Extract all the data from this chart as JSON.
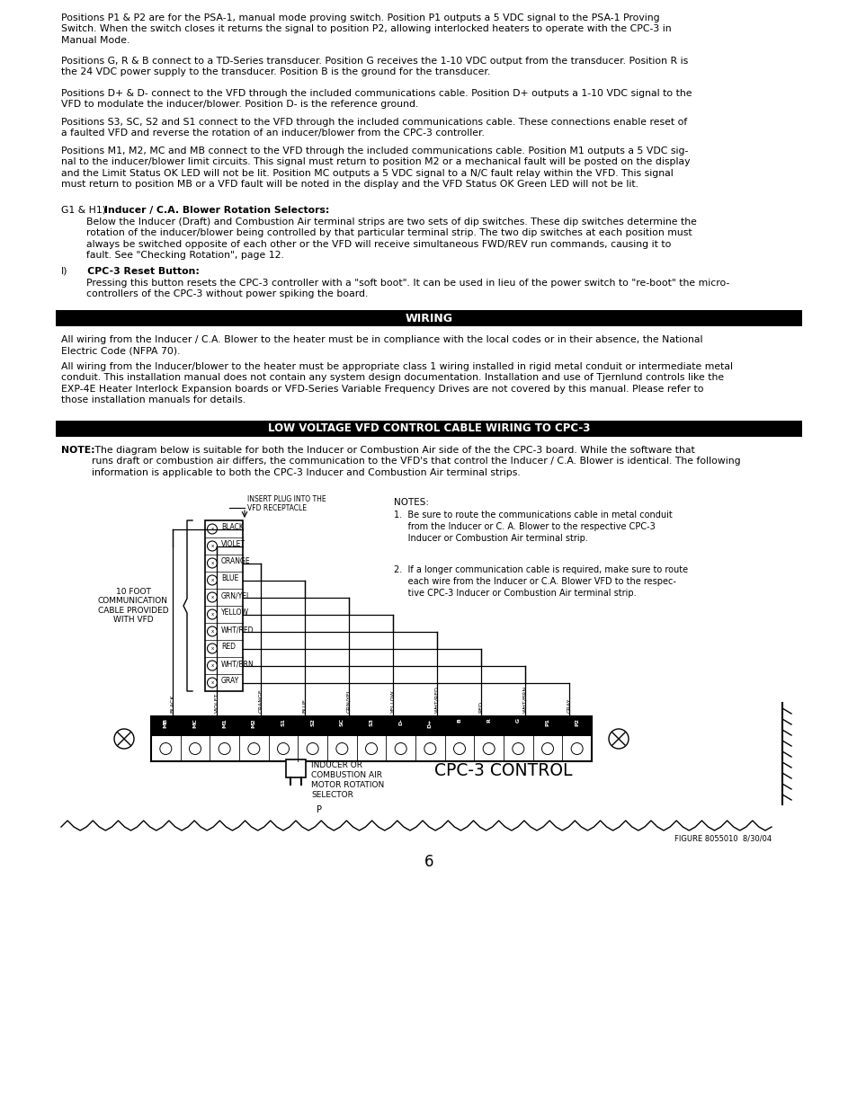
{
  "page_number": "6",
  "background_color": "#ffffff",
  "para1": "Positions P1 & P2 are for the PSA-1, manual mode proving switch. Position P1 outputs a 5 VDC signal to the PSA-1 Proving\nSwitch. When the switch closes it returns the signal to position P2, allowing interlocked heaters to operate with the CPC-3 in\nManual Mode.",
  "para2": "Positions G, R & B connect to a TD-Series transducer. Position G receives the 1-10 VDC output from the transducer. Position R is\nthe 24 VDC power supply to the transducer. Position B is the ground for the transducer.",
  "para3": "Positions D+ & D- connect to the VFD through the included communications cable. Position D+ outputs a 1-10 VDC signal to the\nVFD to modulate the inducer/blower. Position D- is the reference ground.",
  "para4": "Positions S3, SC, S2 and S1 connect to the VFD through the included communications cable. These connections enable reset of\na faulted VFD and reverse the rotation of an inducer/blower from the CPC-3 controller.",
  "para5": "Positions M1, M2, MC and MB connect to the VFD through the included communications cable. Position M1 outputs a 5 VDC sig-\nnal to the inducer/blower limit circuits. This signal must return to position M2 or a mechanical fault will be posted on the display\nand the Limit Status OK LED will not be lit. Position MC outputs a 5 VDC signal to a N/C fault relay within the VFD. This signal\nmust return to position MB or a VFD fault will be noted in the display and the VFD Status OK Green LED will not be lit.",
  "g1h1_plain": "G1 & H1) ",
  "g1h1_bold": "Inducer / C.A. Blower Rotation Selectors:",
  "g1h1_text": "Below the Inducer (Draft) and Combustion Air terminal strips are two sets of dip switches. These dip switches determine the\nrotation of the inducer/blower being controlled by that particular terminal strip. The two dip switches at each position must\nalways be switched opposite of each other or the VFD will receive simultaneous FWD/REV run commands, causing it to\nfault. See \"Checking Rotation\", page 12.",
  "i_plain": "I)",
  "i_bold": "CPC-3 Reset Button:",
  "i_text": "Pressing this button resets the CPC-3 controller with a \"soft boot\". It can be used in lieu of the power switch to \"re-boot\" the micro-\ncontrollers of the CPC-3 without power spiking the board.",
  "wiring_header": "WIRING",
  "wiring_para1": "All wiring from the Inducer / C.A. Blower to the heater must be in compliance with the local codes or in their absence, the National\nElectric Code (NFPA 70).",
  "wiring_para2": "All wiring from the Inducer/blower to the heater must be appropriate class 1 wiring installed in rigid metal conduit or intermediate metal\nconduit. This installation manual does not contain any system design documentation. Installation and use of Tjernlund controls like the\nEXP-4E Heater Interlock Expansion boards or VFD-Series Variable Frequency Drives are not covered by this manual. Please refer to\nthose installation manuals for details.",
  "lv_header": "LOW VOLTAGE VFD CONTROL CABLE WIRING TO CPC-3",
  "note_bold": "NOTE:",
  "note_text": " The diagram below is suitable for both the Inducer or Combustion Air side of the the CPC-3 board. While the software that\nruns draft or combustion air differs, the communication to the VFD's that control the Inducer / C.A. Blower is identical. The following\ninformation is applicable to both the CPC-3 Inducer and Combustion Air terminal strips.",
  "wire_labels": [
    "BLACK",
    "VIOLET",
    "ORANGE",
    "BLUE",
    "GRN/YEL",
    "YELLOW",
    "WHT/RED",
    "RED",
    "WHT/BRN",
    "GRAY"
  ],
  "terminal_labels": [
    "MB",
    "MC",
    "M1",
    "M2",
    "S1",
    "S2",
    "SC",
    "S3",
    "D-",
    "D+",
    "B",
    "R",
    "G",
    "P1",
    "P2"
  ],
  "note1_title": "NOTES:",
  "note1": "1.  Be sure to route the communications cable in metal conduit\n     from the Inducer or C. A. Blower to the respective CPC-3\n     Inducer or Combustion Air terminal strip.",
  "note2": "2.  If a longer communication cable is required, make sure to route\n     each wire from the Inducer or C.A. Blower VFD to the respec-\n     tive CPC-3 Inducer or Combustion Air terminal strip.",
  "label_10foot": "10 FOOT\nCOMMUNICATION\nCABLE PROVIDED\nWITH VFD",
  "label_insert": "INSERT PLUG INTO THE\nVFD RECEPTACLE",
  "label_inducer": "INDUCER OR\nCOMBUSTION AIR\nMOTOR ROTATION\nSELECTOR",
  "label_cpc3": "CPC-3 CONTROL",
  "figure_label": "FIGURE 8055010  8/30/04",
  "p_label": "P"
}
